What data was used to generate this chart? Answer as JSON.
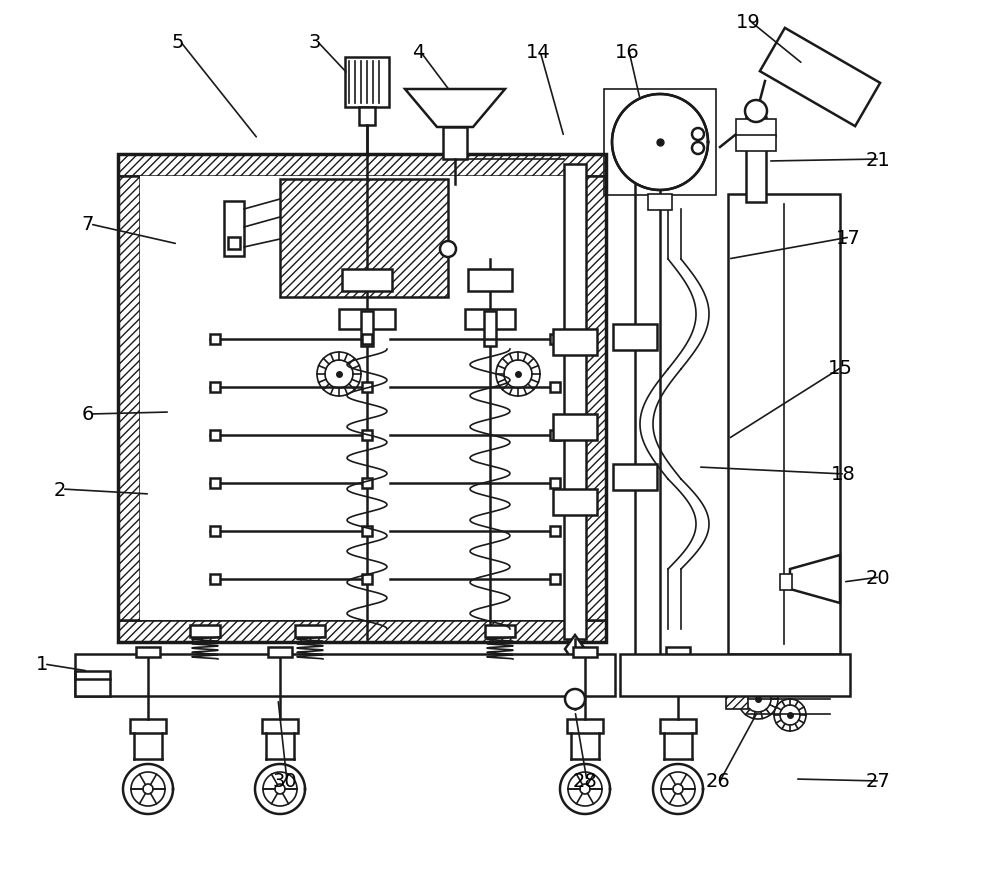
{
  "bg_color": "#ffffff",
  "line_color": "#1a1a1a",
  "label_color": "#000000",
  "figsize": [
    10.0,
    8.79
  ],
  "dpi": 100
}
